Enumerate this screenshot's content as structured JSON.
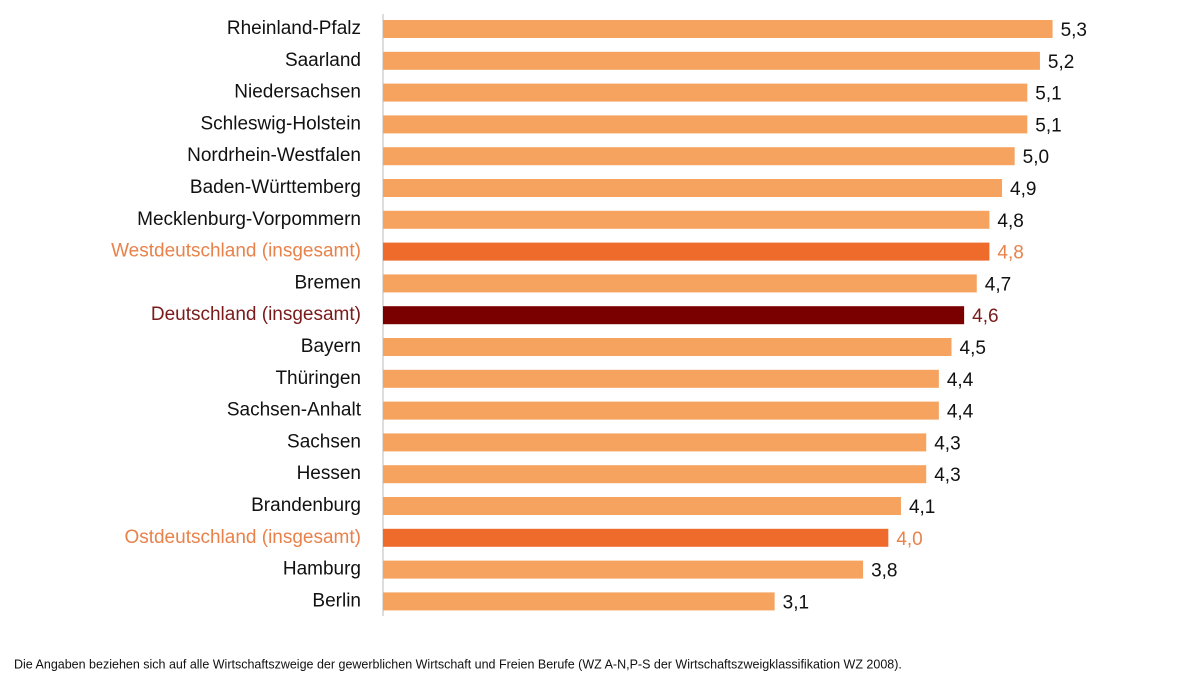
{
  "chart_data": {
    "type": "bar",
    "orientation": "horizontal",
    "categories": [
      "Rheinland-Pfalz",
      "Saarland",
      "Niedersachsen",
      "Schleswig-Holstein",
      "Nordrhein-Westfalen",
      "Baden-Württemberg",
      "Mecklenburg-Vorpommern",
      "Westdeutschland (insgesamt)",
      "Bremen",
      "Deutschland (insgesamt)",
      "Bayern",
      "Thüringen",
      "Sachsen-Anhalt",
      "Sachsen",
      "Hessen",
      "Brandenburg",
      "Ostdeutschland (insgesamt)",
      "Hamburg",
      "Berlin"
    ],
    "values": [
      5.3,
      5.2,
      5.1,
      5.1,
      5.0,
      4.9,
      4.8,
      4.8,
      4.7,
      4.6,
      4.5,
      4.4,
      4.4,
      4.3,
      4.3,
      4.1,
      4.0,
      3.8,
      3.1
    ],
    "value_labels": [
      "5,3",
      "5,2",
      "5,1",
      "5,1",
      "5,0",
      "4,9",
      "4,8",
      "4,8",
      "4,7",
      "4,6",
      "4,5",
      "4,4",
      "4,4",
      "4,3",
      "4,3",
      "4,1",
      "4,0",
      "3,8",
      "3,1"
    ],
    "colors": [
      "#f5a35f",
      "#f5a35f",
      "#f5a35f",
      "#f5a35f",
      "#f5a35f",
      "#f5a35f",
      "#f5a35f",
      "#ee6b2b",
      "#f5a35f",
      "#7a0000",
      "#f5a35f",
      "#f5a35f",
      "#f5a35f",
      "#f5a35f",
      "#f5a35f",
      "#f5a35f",
      "#ee6b2b",
      "#f5a35f",
      "#f5a35f"
    ],
    "label_colors": [
      "#111111",
      "#111111",
      "#111111",
      "#111111",
      "#111111",
      "#111111",
      "#111111",
      "#e8824a",
      "#111111",
      "#7a1a1a",
      "#111111",
      "#111111",
      "#111111",
      "#111111",
      "#111111",
      "#111111",
      "#e8824a",
      "#111111",
      "#111111"
    ],
    "xlim": [
      0,
      6
    ],
    "footnote": "Die Angaben beziehen sich auf alle Wirtschaftszweige der gewerblichen Wirtschaft und Freien Berufe (WZ A-N,P-S der Wirtschaftszweigklassifikation WZ 2008)."
  }
}
